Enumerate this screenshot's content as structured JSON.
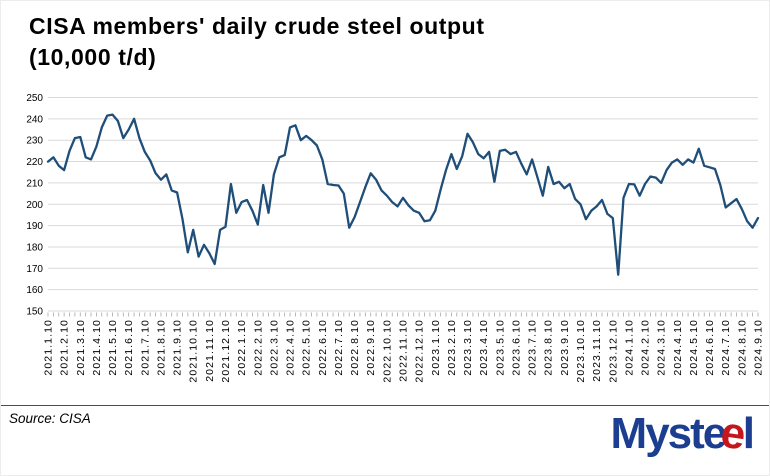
{
  "page": {
    "background": "#ffffff"
  },
  "header": {
    "title_line1": "CISA members' daily crude steel output",
    "title_line2": "(10,000 t/d)"
  },
  "footer": {
    "source_label": "Source: CISA",
    "logo": {
      "part1": "Myst",
      "part2": "e",
      "part3": "e",
      "part4": "l",
      "blue": "#1b3e91",
      "red": "#c4161c"
    }
  },
  "chart_data": {
    "type": "line",
    "title": "CISA members' daily crude steel output (10,000 t/d)",
    "xlabel": "",
    "ylabel": "",
    "ylim": [
      150,
      250
    ],
    "ytick_step": 10,
    "grid": "horizontal",
    "legend": "none",
    "line_color": "#1F4E79",
    "grid_color": "#D9D9D9",
    "tick_color": "#A6A6A6",
    "text_color": "#000000",
    "x_tick_labels": [
      "2021.1.10",
      "2021.2.10",
      "2021.3.10",
      "2021.4.10",
      "2021.5.10",
      "2021.6.10",
      "2021.7.10",
      "2021.8.10",
      "2021.9.10",
      "2021.10.10",
      "2021.11.10",
      "2021.12.10",
      "2022.1.10",
      "2022.2.10",
      "2022.3.10",
      "2022.4.10",
      "2022.5.10",
      "2022.6.10",
      "2022.7.10",
      "2022.8.10",
      "2022.9.10",
      "2022.10.10",
      "2022.11.10",
      "2022.12.10",
      "2023.1.10",
      "2023.2.10",
      "2023.3.10",
      "2023.4.10",
      "2023.5.10",
      "2023.6.10",
      "2023.7.10",
      "2023.8.10",
      "2023.9.10",
      "2023.10.10",
      "2023.11.10",
      "2023.12.10",
      "2024.1.10",
      "2024.2.10",
      "2024.3.10",
      "2024.4.10",
      "2024.5.10",
      "2024.6.10",
      "2024.7.10",
      "2024.8.10",
      "2024.9.10"
    ],
    "x": [
      "2021.1.10",
      "2021.1.20",
      "2021.1.31",
      "2021.2.10",
      "2021.2.20",
      "2021.2.28",
      "2021.3.10",
      "2021.3.20",
      "2021.3.31",
      "2021.4.10",
      "2021.4.20",
      "2021.4.30",
      "2021.5.10",
      "2021.5.20",
      "2021.5.31",
      "2021.6.10",
      "2021.6.20",
      "2021.6.30",
      "2021.7.10",
      "2021.7.20",
      "2021.7.31",
      "2021.8.10",
      "2021.8.20",
      "2021.8.31",
      "2021.9.10",
      "2021.9.20",
      "2021.9.30",
      "2021.10.10",
      "2021.10.20",
      "2021.10.31",
      "2021.11.10",
      "2021.11.20",
      "2021.11.30",
      "2021.12.10",
      "2021.12.20",
      "2021.12.31",
      "2022.1.10",
      "2022.1.20",
      "2022.1.31",
      "2022.2.10",
      "2022.2.20",
      "2022.2.28",
      "2022.3.10",
      "2022.3.20",
      "2022.3.31",
      "2022.4.10",
      "2022.4.20",
      "2022.4.30",
      "2022.5.10",
      "2022.5.20",
      "2022.5.31",
      "2022.6.10",
      "2022.6.20",
      "2022.6.30",
      "2022.7.10",
      "2022.7.20",
      "2022.7.31",
      "2022.8.10",
      "2022.8.20",
      "2022.8.31",
      "2022.9.10",
      "2022.9.20",
      "2022.9.30",
      "2022.10.10",
      "2022.10.20",
      "2022.10.31",
      "2022.11.10",
      "2022.11.20",
      "2022.11.30",
      "2022.12.10",
      "2022.12.20",
      "2022.12.31",
      "2023.1.10",
      "2023.1.20",
      "2023.1.31",
      "2023.2.10",
      "2023.2.20",
      "2023.2.28",
      "2023.3.10",
      "2023.3.20",
      "2023.3.31",
      "2023.4.10",
      "2023.4.20",
      "2023.4.30",
      "2023.5.10",
      "2023.5.20",
      "2023.5.31",
      "2023.6.10",
      "2023.6.20",
      "2023.6.30",
      "2023.7.10",
      "2023.7.20",
      "2023.7.31",
      "2023.8.10",
      "2023.8.20",
      "2023.8.31",
      "2023.9.10",
      "2023.9.20",
      "2023.9.30",
      "2023.10.10",
      "2023.10.20",
      "2023.10.31",
      "2023.11.10",
      "2023.11.20",
      "2023.11.30",
      "2023.12.10",
      "2023.12.20",
      "2023.12.31",
      "2024.1.10",
      "2024.1.20",
      "2024.1.31",
      "2024.2.10",
      "2024.2.20",
      "2024.2.29",
      "2024.3.10",
      "2024.3.20",
      "2024.3.31",
      "2024.4.10",
      "2024.4.20",
      "2024.4.30",
      "2024.5.10",
      "2024.5.20",
      "2024.5.31",
      "2024.6.10",
      "2024.6.20",
      "2024.6.30",
      "2024.7.10",
      "2024.7.20",
      "2024.7.31",
      "2024.8.10",
      "2024.8.20",
      "2024.8.31",
      "2024.9.10"
    ],
    "values": [
      220,
      222,
      218,
      216,
      225,
      231,
      231.5,
      222,
      221,
      227,
      236,
      241.5,
      242,
      239,
      231,
      235,
      240,
      231,
      224.5,
      220.5,
      214.5,
      211.5,
      214,
      206.5,
      205.5,
      193,
      177.5,
      188,
      175.5,
      181,
      177,
      172,
      188,
      189.5,
      209.5,
      196,
      201,
      202,
      197,
      190.5,
      209,
      196,
      214,
      222,
      223,
      236,
      237,
      230,
      232,
      230,
      227.5,
      221,
      209.5,
      209,
      208.8,
      205,
      189,
      194,
      201,
      208,
      214.5,
      211.5,
      206.5,
      204,
      201,
      199,
      203,
      199.5,
      197,
      196,
      192,
      192.5,
      197,
      207,
      216,
      223.5,
      216.5,
      222.5,
      233,
      229,
      223.5,
      221.5,
      224.5,
      210.5,
      225,
      225.5,
      223.5,
      224.5,
      219,
      214,
      221,
      212.5,
      204,
      217.5,
      209.5,
      210.5,
      207.5,
      209.5,
      202.5,
      200,
      193,
      197,
      199,
      202,
      195.5,
      193.5,
      167,
      203,
      209.5,
      209.3,
      204,
      209.5,
      213,
      212.5,
      210,
      216,
      219.5,
      221,
      218.5,
      221,
      219.5,
      226,
      218,
      217.3,
      216.5,
      209,
      198.5,
      200.5,
      202.4,
      197.7,
      192,
      189,
      193.5
    ]
  }
}
